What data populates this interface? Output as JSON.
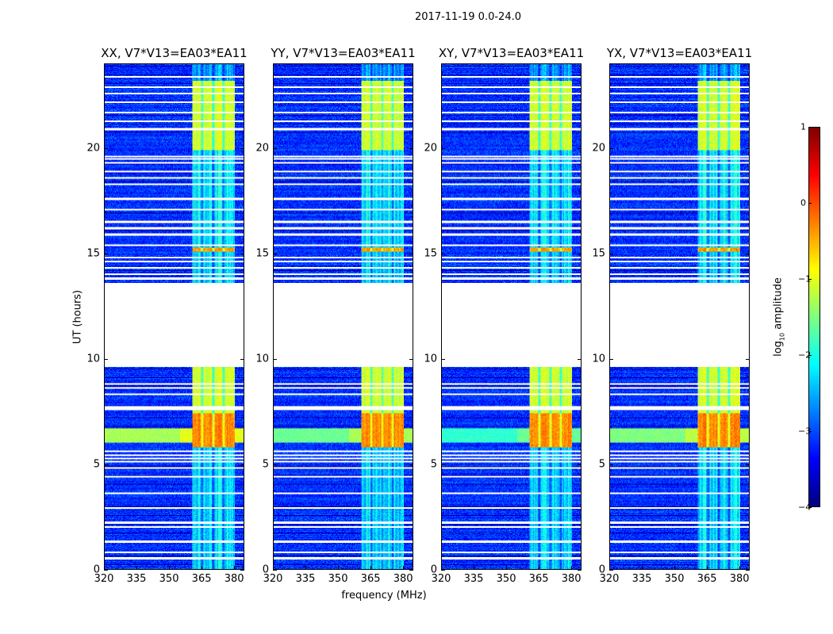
{
  "suptitle": "2017-11-19 0.0-24.0",
  "xlabel": "frequency (MHz)",
  "ylabel": "UT (hours)",
  "colorbar": {
    "label_pre": "log",
    "label_sub": "10",
    "label_post": " amplitude",
    "ticks": [
      "1",
      "0",
      "−1",
      "−2",
      "−3",
      "−4"
    ],
    "tick_values": [
      1,
      0,
      -1,
      -2,
      -3,
      -4
    ],
    "range": [
      -4,
      1
    ],
    "colormap": "jet"
  },
  "chart_data": {
    "type": "heatmap",
    "title": "2017-11-19 0.0-24.0",
    "xlabel": "frequency (MHz)",
    "ylabel": "UT (hours)",
    "xlim": [
      320,
      384.7
    ],
    "ylim": [
      0,
      24
    ],
    "xticks": [
      "320",
      "335",
      "350",
      "365",
      "380"
    ],
    "xtick_values": [
      320,
      335,
      350,
      365,
      380
    ],
    "yticks": [
      "0",
      "5",
      "10",
      "15",
      "20"
    ],
    "ytick_values": [
      0,
      5,
      10,
      15,
      20
    ],
    "panels": [
      {
        "title": "XX, V7*V13=EA03*EA11",
        "broadband_level": -1.3
      },
      {
        "title": "YY, V7*V13=EA03*EA11",
        "broadband_level": -1.6
      },
      {
        "title": "XY, V7*V13=EA03*EA11",
        "broadband_level": -1.9
      },
      {
        "title": "YX, V7*V13=EA03*EA11",
        "broadband_level": -1.5
      }
    ],
    "background_level": -3.3,
    "no_data_interval_hours": [
      9.6,
      13.6
    ],
    "rfi_band_mhz": [
      361,
      380.5
    ],
    "rfi_gaps_mhz": [
      365.5,
      370.5,
      375.5
    ],
    "rfi_levels": [
      {
        "hours": [
          0,
          5.8
        ],
        "level": -2.3
      },
      {
        "hours": [
          5.8,
          7.4
        ],
        "level": -0.3
      },
      {
        "hours": [
          7.4,
          9.6
        ],
        "level": -1.1
      },
      {
        "hours": [
          13.6,
          15.1
        ],
        "level": -2.3
      },
      {
        "hours": [
          15.1,
          15.3
        ],
        "level": -0.4
      },
      {
        "hours": [
          15.3,
          19.9
        ],
        "level": -2.2
      },
      {
        "hours": [
          19.9,
          23.2
        ],
        "level": -1.1
      },
      {
        "hours": [
          23.2,
          24
        ],
        "level": -2.6
      }
    ],
    "broadband_interval_hours": [
      6.0,
      6.7
    ],
    "flagged_rows_hours": [
      0.5,
      0.8,
      1.3,
      2.0,
      2.2,
      2.9,
      3.6,
      4.4,
      4.8,
      5.1,
      5.25,
      5.4,
      5.6,
      7.6,
      7.7,
      8.3,
      8.6,
      8.8,
      13.8,
      14.0,
      14.3,
      14.6,
      14.8,
      15.4,
      15.9,
      16.2,
      16.5,
      17.1,
      17.6,
      18.3,
      18.6,
      18.9,
      19.3,
      19.5,
      19.6,
      20.9,
      21.3,
      21.7,
      22.2,
      22.6,
      22.9,
      23.4
    ]
  }
}
